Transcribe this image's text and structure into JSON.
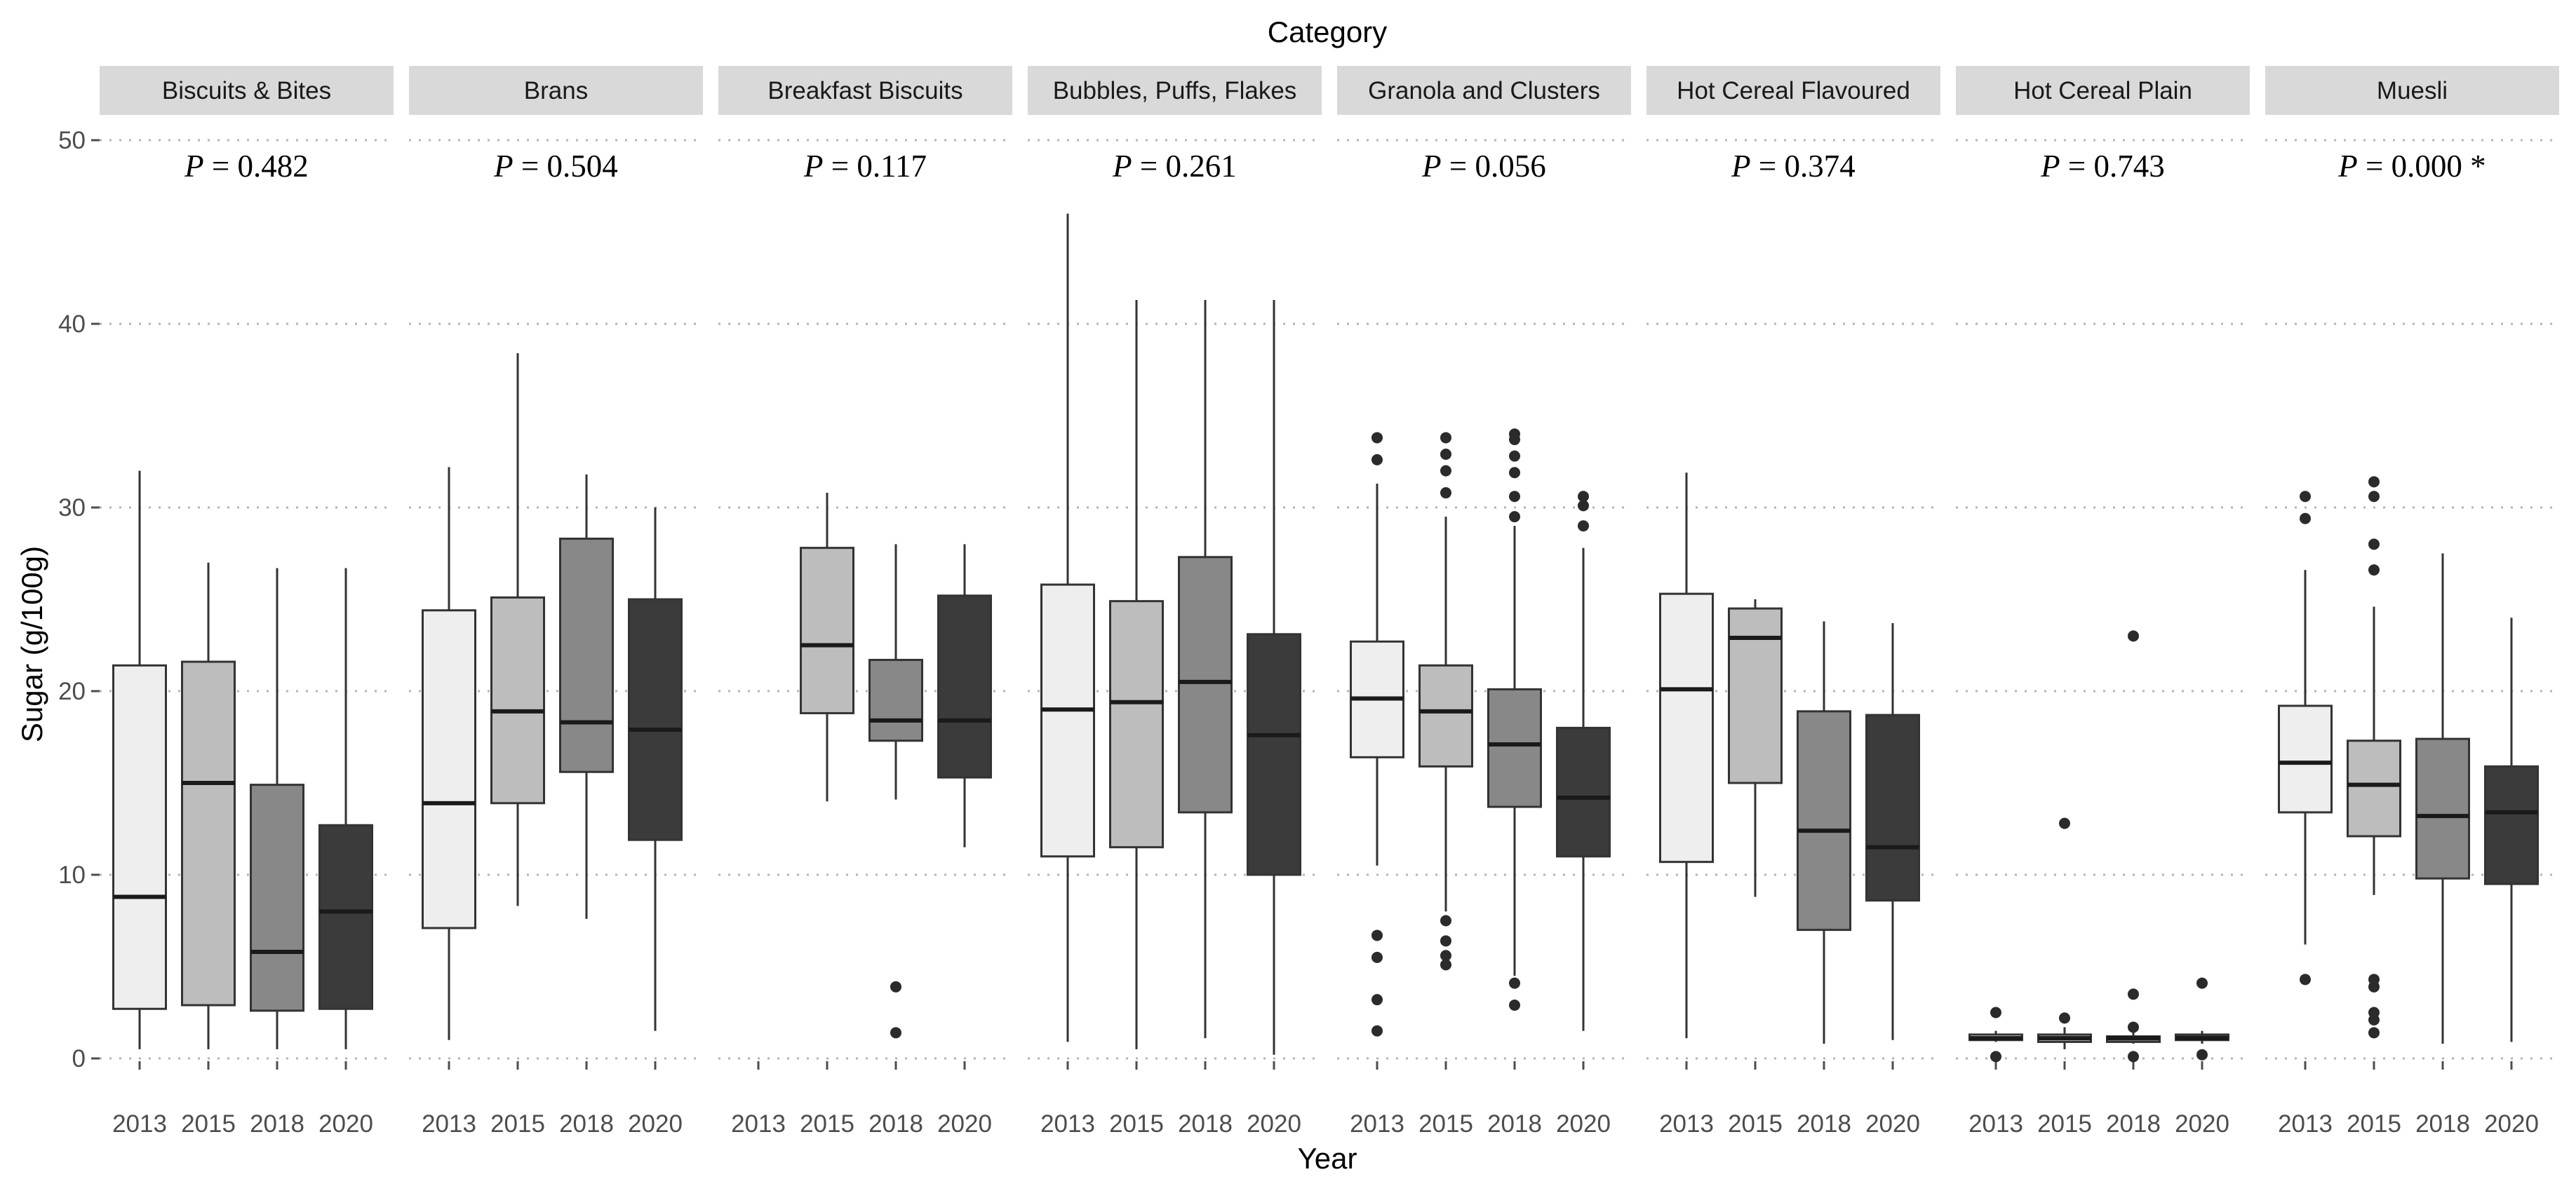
{
  "chart_data": {
    "type": "boxplot",
    "title": "Category",
    "xlabel": "Year",
    "ylabel": "Sugar (g/100g)",
    "ylim": [
      0,
      50
    ],
    "yticks": [
      0,
      10,
      20,
      30,
      40,
      50
    ],
    "grid": "horizontal dotted",
    "years": [
      "2013",
      "2015",
      "2018",
      "2020"
    ],
    "year_fill": [
      "#eeeeee",
      "#bdbdbd",
      "#888888",
      "#3b3b3b"
    ],
    "panels": [
      {
        "category": "Biscuits & Bites",
        "p_label": "P",
        "p_value": " = 0.482",
        "boxes": [
          {
            "year": "2013",
            "lower": 0.5,
            "q1": 2.7,
            "median": 8.8,
            "q3": 21.4,
            "upper": 32.0,
            "outliers": []
          },
          {
            "year": "2015",
            "lower": 0.5,
            "q1": 2.9,
            "median": 15.0,
            "q3": 21.6,
            "upper": 27.0,
            "outliers": []
          },
          {
            "year": "2018",
            "lower": 0.5,
            "q1": 2.6,
            "median": 5.8,
            "q3": 14.9,
            "upper": 26.7,
            "outliers": []
          },
          {
            "year": "2020",
            "lower": 0.5,
            "q1": 2.7,
            "median": 8.0,
            "q3": 12.7,
            "upper": 26.7,
            "outliers": []
          }
        ]
      },
      {
        "category": "Brans",
        "p_label": "P",
        "p_value": " = 0.504",
        "boxes": [
          {
            "year": "2013",
            "lower": 1.0,
            "q1": 7.1,
            "median": 13.9,
            "q3": 24.4,
            "upper": 32.2,
            "outliers": []
          },
          {
            "year": "2015",
            "lower": 8.3,
            "q1": 13.9,
            "median": 18.9,
            "q3": 25.1,
            "upper": 38.4,
            "outliers": []
          },
          {
            "year": "2018",
            "lower": 7.6,
            "q1": 15.6,
            "median": 18.3,
            "q3": 28.3,
            "upper": 31.8,
            "outliers": []
          },
          {
            "year": "2020",
            "lower": 1.5,
            "q1": 11.9,
            "median": 17.9,
            "q3": 25.0,
            "upper": 30.0,
            "outliers": []
          }
        ]
      },
      {
        "category": "Breakfast Biscuits",
        "p_label": "P",
        "p_value": " = 0.117",
        "boxes": [
          {
            "year": "2015",
            "lower": 14.0,
            "q1": 18.8,
            "median": 22.5,
            "q3": 27.8,
            "upper": 30.8,
            "outliers": []
          },
          {
            "year": "2018",
            "lower": 14.1,
            "q1": 17.3,
            "median": 18.4,
            "q3": 21.7,
            "upper": 28.0,
            "outliers": [
              3.9,
              1.4
            ]
          },
          {
            "year": "2020",
            "lower": 11.5,
            "q1": 15.3,
            "median": 18.4,
            "q3": 25.2,
            "upper": 28.0,
            "outliers": []
          }
        ]
      },
      {
        "category": "Bubbles, Puffs, Flakes",
        "p_label": "P",
        "p_value": " = 0.261",
        "boxes": [
          {
            "year": "2013",
            "lower": 0.9,
            "q1": 11.0,
            "median": 19.0,
            "q3": 25.8,
            "upper": 46.0,
            "outliers": []
          },
          {
            "year": "2015",
            "lower": 0.5,
            "q1": 11.5,
            "median": 19.4,
            "q3": 24.9,
            "upper": 41.3,
            "outliers": []
          },
          {
            "year": "2018",
            "lower": 1.1,
            "q1": 13.4,
            "median": 20.5,
            "q3": 27.3,
            "upper": 41.3,
            "outliers": []
          },
          {
            "year": "2020",
            "lower": 0.2,
            "q1": 10.0,
            "median": 17.6,
            "q3": 23.1,
            "upper": 41.3,
            "outliers": []
          }
        ]
      },
      {
        "category": "Granola and Clusters",
        "p_label": "P",
        "p_value": " = 0.056",
        "boxes": [
          {
            "year": "2013",
            "lower": 10.5,
            "q1": 16.4,
            "median": 19.6,
            "q3": 22.7,
            "upper": 31.3,
            "outliers": [
              33.8,
              32.6,
              6.7,
              5.5,
              3.2,
              1.5
            ]
          },
          {
            "year": "2015",
            "lower": 8.0,
            "q1": 15.9,
            "median": 18.9,
            "q3": 21.4,
            "upper": 29.5,
            "outliers": [
              33.8,
              32.9,
              32.0,
              30.8,
              7.5,
              6.4,
              5.6,
              5.1
            ]
          },
          {
            "year": "2018",
            "lower": 4.5,
            "q1": 13.7,
            "median": 17.1,
            "q3": 20.1,
            "upper": 29.0,
            "outliers": [
              34.0,
              33.7,
              32.8,
              31.9,
              30.6,
              29.5,
              4.1,
              2.9
            ]
          },
          {
            "year": "2020",
            "lower": 1.5,
            "q1": 11.0,
            "median": 14.2,
            "q3": 18.0,
            "upper": 27.8,
            "outliers": [
              30.6,
              30.1,
              29.0
            ]
          }
        ]
      },
      {
        "category": "Hot Cereal Flavoured",
        "p_label": "P",
        "p_value": " = 0.374",
        "boxes": [
          {
            "year": "2013",
            "lower": 1.1,
            "q1": 10.7,
            "median": 20.1,
            "q3": 25.3,
            "upper": 31.9,
            "outliers": []
          },
          {
            "year": "2015",
            "lower": 8.8,
            "q1": 15.0,
            "median": 22.9,
            "q3": 24.5,
            "upper": 25.0,
            "outliers": []
          },
          {
            "year": "2018",
            "lower": 0.8,
            "q1": 7.0,
            "median": 12.4,
            "q3": 18.9,
            "upper": 23.8,
            "outliers": []
          },
          {
            "year": "2020",
            "lower": 1.0,
            "q1": 8.6,
            "median": 11.5,
            "q3": 18.7,
            "upper": 23.7,
            "outliers": []
          }
        ]
      },
      {
        "category": "Hot Cereal Plain",
        "p_label": "P",
        "p_value": " = 0.743",
        "boxes": [
          {
            "year": "2013",
            "lower": 0.9,
            "q1": 1.0,
            "median": 1.1,
            "q3": 1.3,
            "upper": 1.5,
            "outliers": [
              2.5,
              0.1
            ]
          },
          {
            "year": "2015",
            "lower": 0.5,
            "q1": 0.9,
            "median": 1.1,
            "q3": 1.3,
            "upper": 1.7,
            "outliers": [
              12.8,
              2.2
            ]
          },
          {
            "year": "2018",
            "lower": 0.8,
            "q1": 0.9,
            "median": 1.1,
            "q3": 1.2,
            "upper": 1.5,
            "outliers": [
              23.0,
              3.5,
              1.7,
              0.1
            ]
          },
          {
            "year": "2020",
            "lower": 0.8,
            "q1": 1.0,
            "median": 1.1,
            "q3": 1.3,
            "upper": 1.5,
            "outliers": [
              4.1,
              0.2
            ]
          }
        ]
      },
      {
        "category": "Muesli",
        "p_label": "P",
        "p_value": " = 0.000 *",
        "boxes": [
          {
            "year": "2013",
            "lower": 6.2,
            "q1": 13.4,
            "median": 16.1,
            "q3": 19.2,
            "upper": 26.6,
            "outliers": [
              30.6,
              29.4,
              4.3
            ]
          },
          {
            "year": "2015",
            "lower": 8.9,
            "q1": 12.1,
            "median": 14.9,
            "q3": 17.3,
            "upper": 24.6,
            "outliers": [
              31.4,
              30.6,
              28.0,
              26.6,
              4.3,
              3.9,
              2.5,
              2.1,
              1.4
            ]
          },
          {
            "year": "2018",
            "lower": 0.8,
            "q1": 9.8,
            "median": 13.2,
            "q3": 17.4,
            "upper": 27.5,
            "outliers": []
          },
          {
            "year": "2020",
            "lower": 0.9,
            "q1": 9.5,
            "median": 13.4,
            "q3": 15.9,
            "upper": 24.0,
            "outliers": []
          }
        ]
      }
    ]
  }
}
